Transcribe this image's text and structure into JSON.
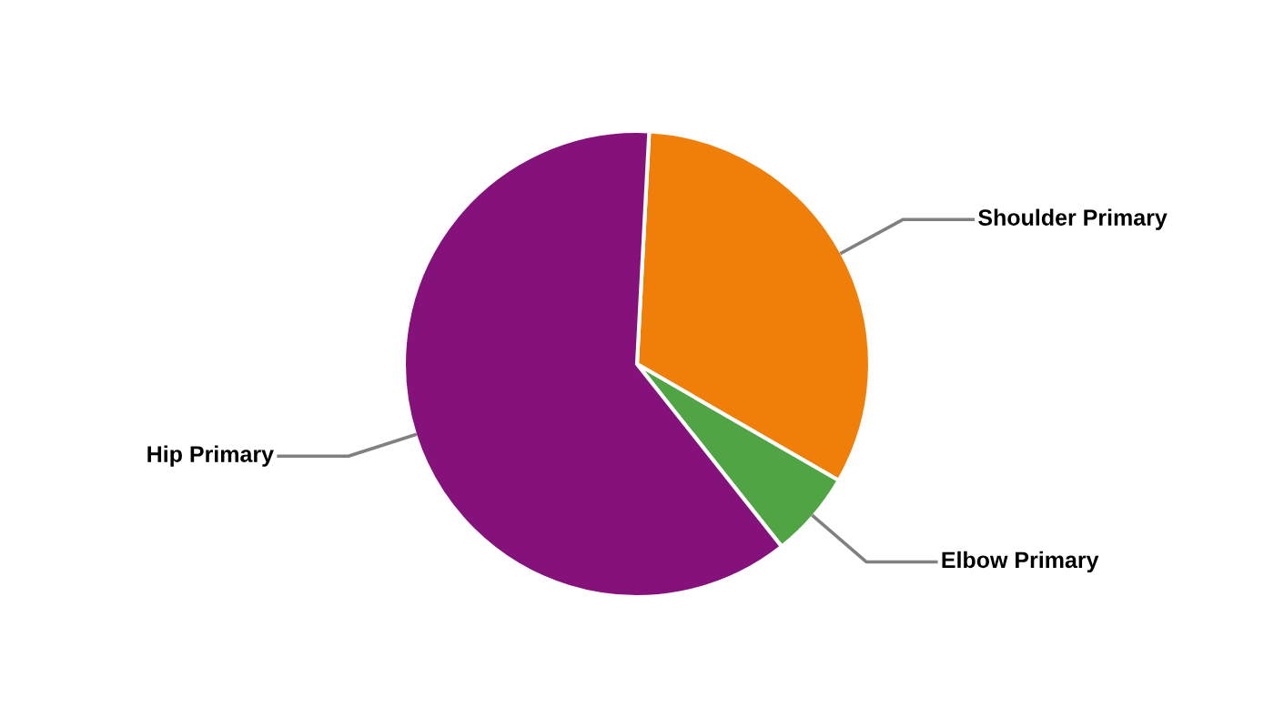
{
  "chart_data": {
    "type": "pie",
    "categories": [
      "Shoulder Primary",
      "Elbow Primary",
      "Hip Primary"
    ],
    "values": [
      32.5,
      6,
      61.5
    ],
    "colors": [
      "#f07f09",
      "#51a444",
      "#85117a"
    ],
    "legend": false
  }
}
